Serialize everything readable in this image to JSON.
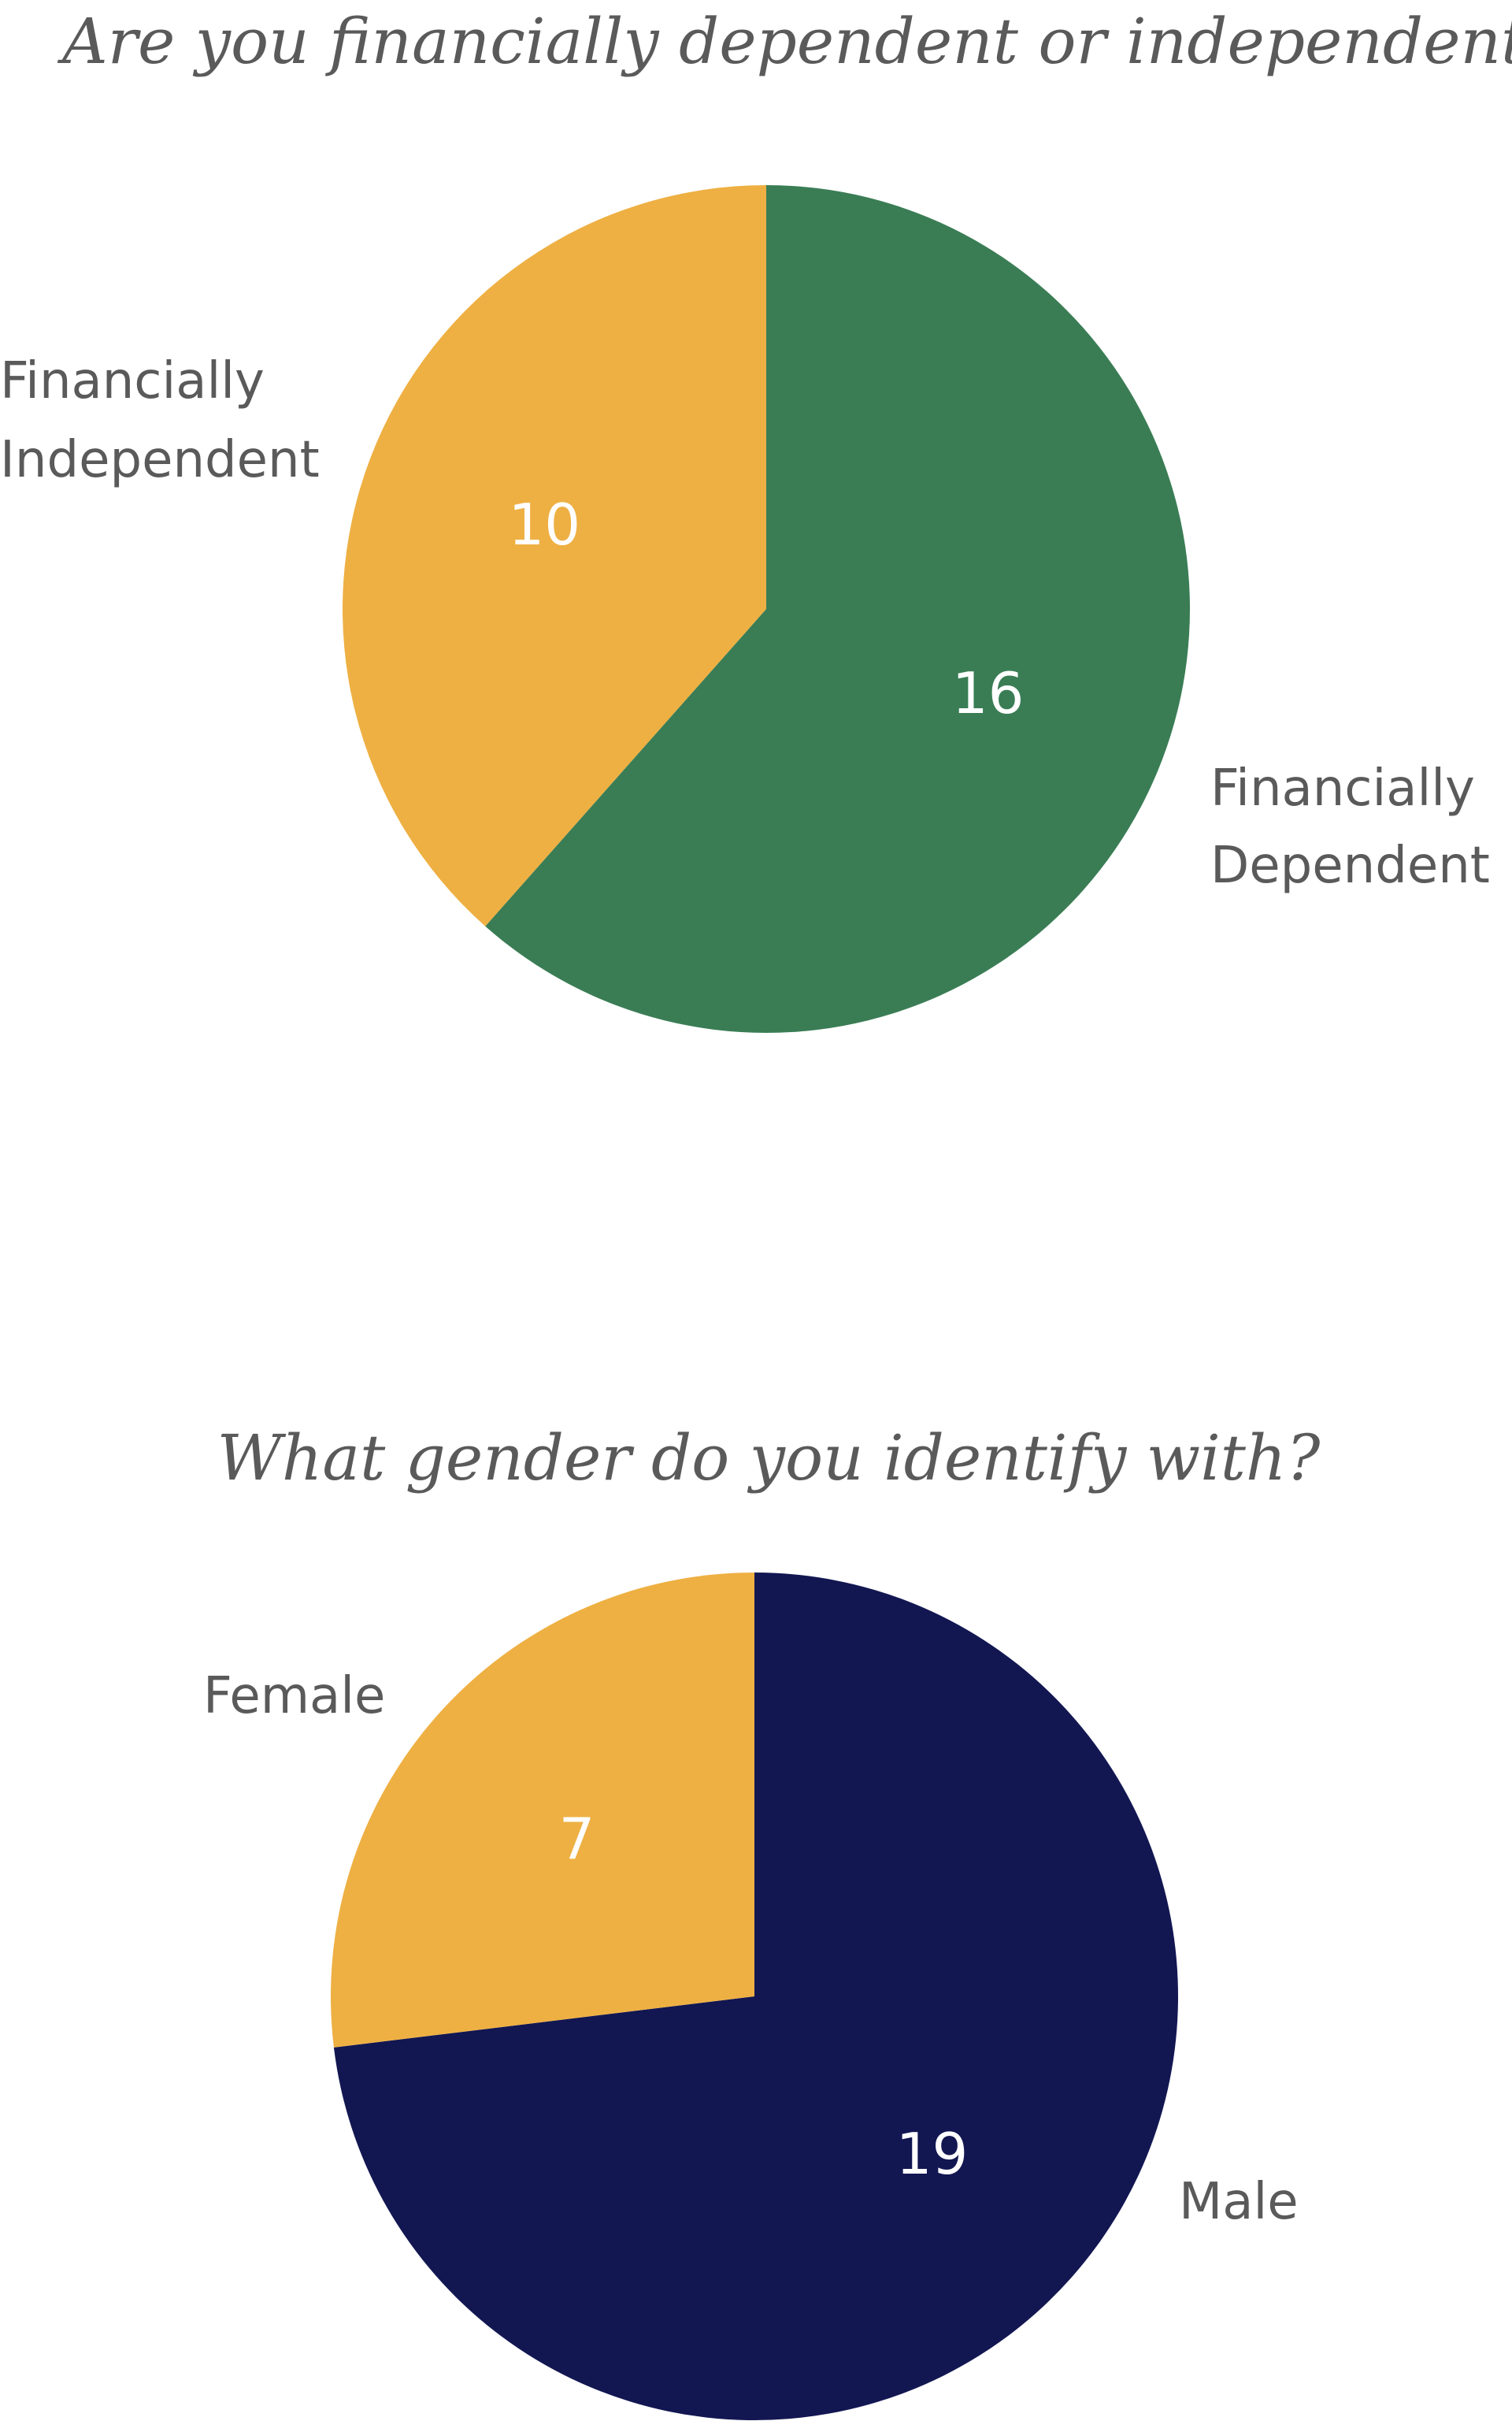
{
  "chart_data": [
    {
      "type": "pie",
      "title": "Are you financially dependent or independent?",
      "slices": [
        {
          "label_lines": [
            "Financially",
            "Dependent"
          ],
          "value": 16,
          "value_label": "16",
          "color": "#3a7d55"
        },
        {
          "label_lines": [
            "Financially",
            "Independent"
          ],
          "value": 10,
          "value_label": "10",
          "color": "#eeb043"
        }
      ]
    },
    {
      "type": "pie",
      "title": "What gender do you identify with?",
      "slices": [
        {
          "label_lines": [
            "Male"
          ],
          "value": 19,
          "value_label": "19",
          "color": "#121752"
        },
        {
          "label_lines": [
            "Female"
          ],
          "value": 7,
          "value_label": "7",
          "color": "#eeb043"
        }
      ]
    }
  ]
}
